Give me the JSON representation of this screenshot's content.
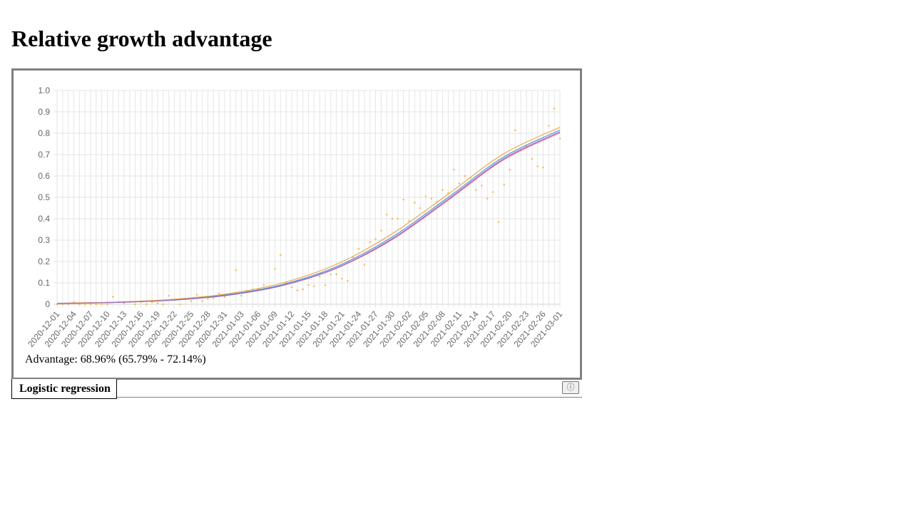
{
  "page": {
    "title": "Relative growth advantage"
  },
  "summary": {
    "advantage_text": "Advantage: 68.96% (65.79% - 72.14%)"
  },
  "tabs": [
    {
      "label": "Logistic regression"
    }
  ],
  "info_button": {
    "icon": "info-icon",
    "glyph": "ⓘ"
  },
  "colors": {
    "grid": "#e6e6e6",
    "axis": "#d0d0d0",
    "fit": "#4a90c8",
    "upper": "#f0a040",
    "lower": "#f06080",
    "lower2": "#8a6fd0",
    "points": "#f5b24a"
  },
  "chart_data": {
    "type": "line",
    "title": "",
    "xlabel": "",
    "ylabel": "",
    "ylim": [
      0,
      1
    ],
    "y_ticks": [
      "0",
      "0.1",
      "0.2",
      "0.3",
      "0.4",
      "0.5",
      "0.6",
      "0.7",
      "0.8",
      "0.9",
      "1.0"
    ],
    "x_start": "2020-12-01",
    "x_end": "2021-03-01",
    "x_ticks": [
      "2020-12-01",
      "2020-12-04",
      "2020-12-07",
      "2020-12-10",
      "2020-12-13",
      "2020-12-16",
      "2020-12-19",
      "2020-12-22",
      "2020-12-25",
      "2020-12-28",
      "2020-12-31",
      "2021-01-03",
      "2021-01-06",
      "2021-01-09",
      "2021-01-12",
      "2021-01-15",
      "2021-01-18",
      "2021-01-21",
      "2021-01-24",
      "2021-01-27",
      "2021-01-30",
      "2021-02-02",
      "2021-02-05",
      "2021-02-08",
      "2021-02-11",
      "2021-02-14",
      "2021-02-17",
      "2021-02-20",
      "2021-02-23",
      "2021-02-26",
      "2021-03-01"
    ],
    "grid": true,
    "legend": "none",
    "series": [
      {
        "role": "fit",
        "x": [
          "2020-12-01",
          "2020-12-11",
          "2020-12-21",
          "2020-12-31",
          "2021-01-10",
          "2021-01-20",
          "2021-01-30",
          "2021-02-09",
          "2021-02-19",
          "2021-03-01"
        ],
        "values": [
          0.004,
          0.009,
          0.02,
          0.043,
          0.09,
          0.176,
          0.315,
          0.5,
          0.69,
          0.815
        ]
      },
      {
        "role": "upper",
        "x": [
          "2020-12-01",
          "2020-12-11",
          "2020-12-21",
          "2020-12-31",
          "2021-01-10",
          "2021-01-20",
          "2021-01-30",
          "2021-02-09",
          "2021-02-19",
          "2021-03-01"
        ],
        "values": [
          0.005,
          0.01,
          0.022,
          0.047,
          0.097,
          0.187,
          0.33,
          0.515,
          0.705,
          0.828
        ]
      },
      {
        "role": "lower",
        "x": [
          "2020-12-01",
          "2020-12-11",
          "2020-12-21",
          "2020-12-31",
          "2021-01-10",
          "2021-01-20",
          "2021-01-30",
          "2021-02-09",
          "2021-02-19",
          "2021-03-01"
        ],
        "values": [
          0.003,
          0.008,
          0.018,
          0.04,
          0.085,
          0.168,
          0.303,
          0.487,
          0.677,
          0.802
        ]
      },
      {
        "role": "lower2",
        "x": [
          "2020-12-01",
          "2020-12-11",
          "2020-12-21",
          "2020-12-31",
          "2021-01-10",
          "2021-01-20",
          "2021-01-30",
          "2021-02-09",
          "2021-02-19",
          "2021-03-01"
        ],
        "values": [
          0.003,
          0.008,
          0.018,
          0.04,
          0.086,
          0.17,
          0.307,
          0.492,
          0.682,
          0.807
        ]
      }
    ],
    "points": {
      "x": [
        "2020-12-01",
        "2020-12-02",
        "2020-12-03",
        "2020-12-04",
        "2020-12-05",
        "2020-12-06",
        "2020-12-07",
        "2020-12-08",
        "2020-12-09",
        "2020-12-10",
        "2020-12-11",
        "2020-12-12",
        "2020-12-13",
        "2020-12-14",
        "2020-12-15",
        "2020-12-16",
        "2020-12-17",
        "2020-12-18",
        "2020-12-19",
        "2020-12-20",
        "2020-12-21",
        "2020-12-22",
        "2020-12-23",
        "2020-12-24",
        "2020-12-25",
        "2020-12-26",
        "2020-12-27",
        "2020-12-28",
        "2020-12-29",
        "2020-12-30",
        "2020-12-31",
        "2021-01-01",
        "2021-01-02",
        "2021-01-03",
        "2021-01-04",
        "2021-01-05",
        "2021-01-06",
        "2021-01-07",
        "2021-01-08",
        "2021-01-09",
        "2021-01-10",
        "2021-01-11",
        "2021-01-12",
        "2021-01-13",
        "2021-01-14",
        "2021-01-15",
        "2021-01-16",
        "2021-01-17",
        "2021-01-18",
        "2021-01-19",
        "2021-01-20",
        "2021-01-21",
        "2021-01-22",
        "2021-01-23",
        "2021-01-24",
        "2021-01-25",
        "2021-01-26",
        "2021-01-27",
        "2021-01-28",
        "2021-01-29",
        "2021-01-30",
        "2021-01-31",
        "2021-02-01",
        "2021-02-02",
        "2021-02-03",
        "2021-02-04",
        "2021-02-05",
        "2021-02-06",
        "2021-02-07",
        "2021-02-08",
        "2021-02-09",
        "2021-02-10",
        "2021-02-11",
        "2021-02-12",
        "2021-02-13",
        "2021-02-14",
        "2021-02-15",
        "2021-02-16",
        "2021-02-17",
        "2021-02-18",
        "2021-02-19",
        "2021-02-20",
        "2021-02-21",
        "2021-02-22",
        "2021-02-23",
        "2021-02-24",
        "2021-02-25",
        "2021-02-26",
        "2021-02-27",
        "2021-02-28",
        "2021-03-01"
      ],
      "values": [
        0,
        0,
        0,
        0.01,
        0,
        0,
        0,
        0,
        0,
        0,
        0.035,
        0.01,
        0.005,
        0.01,
        0,
        0.01,
        0,
        0.01,
        0.005,
        0,
        0.04,
        0.02,
        0,
        0.025,
        0.015,
        0.045,
        0.015,
        0.025,
        0.03,
        0.05,
        0.035,
        0.045,
        0.16,
        0.04,
        0.06,
        0.07,
        0.07,
        0.09,
        0.075,
        0.165,
        0.23,
        0.1,
        0.08,
        0.065,
        0.07,
        0.09,
        0.085,
        0.13,
        0.09,
        0.14,
        0.14,
        0.12,
        0.11,
        0.22,
        0.26,
        0.185,
        0.29,
        0.305,
        0.345,
        0.42,
        0.4,
        0.4,
        0.49,
        0.39,
        0.475,
        0.45,
        0.505,
        0.495,
        0.48,
        0.535,
        0.52,
        0.63,
        0.565,
        0.6,
        0.59,
        0.535,
        0.555,
        0.495,
        0.525,
        0.385,
        0.56,
        0.63,
        0.815,
        0.72,
        0.74,
        0.68,
        0.645,
        0.64,
        0.835,
        0.915,
        0.775
      ]
    }
  }
}
